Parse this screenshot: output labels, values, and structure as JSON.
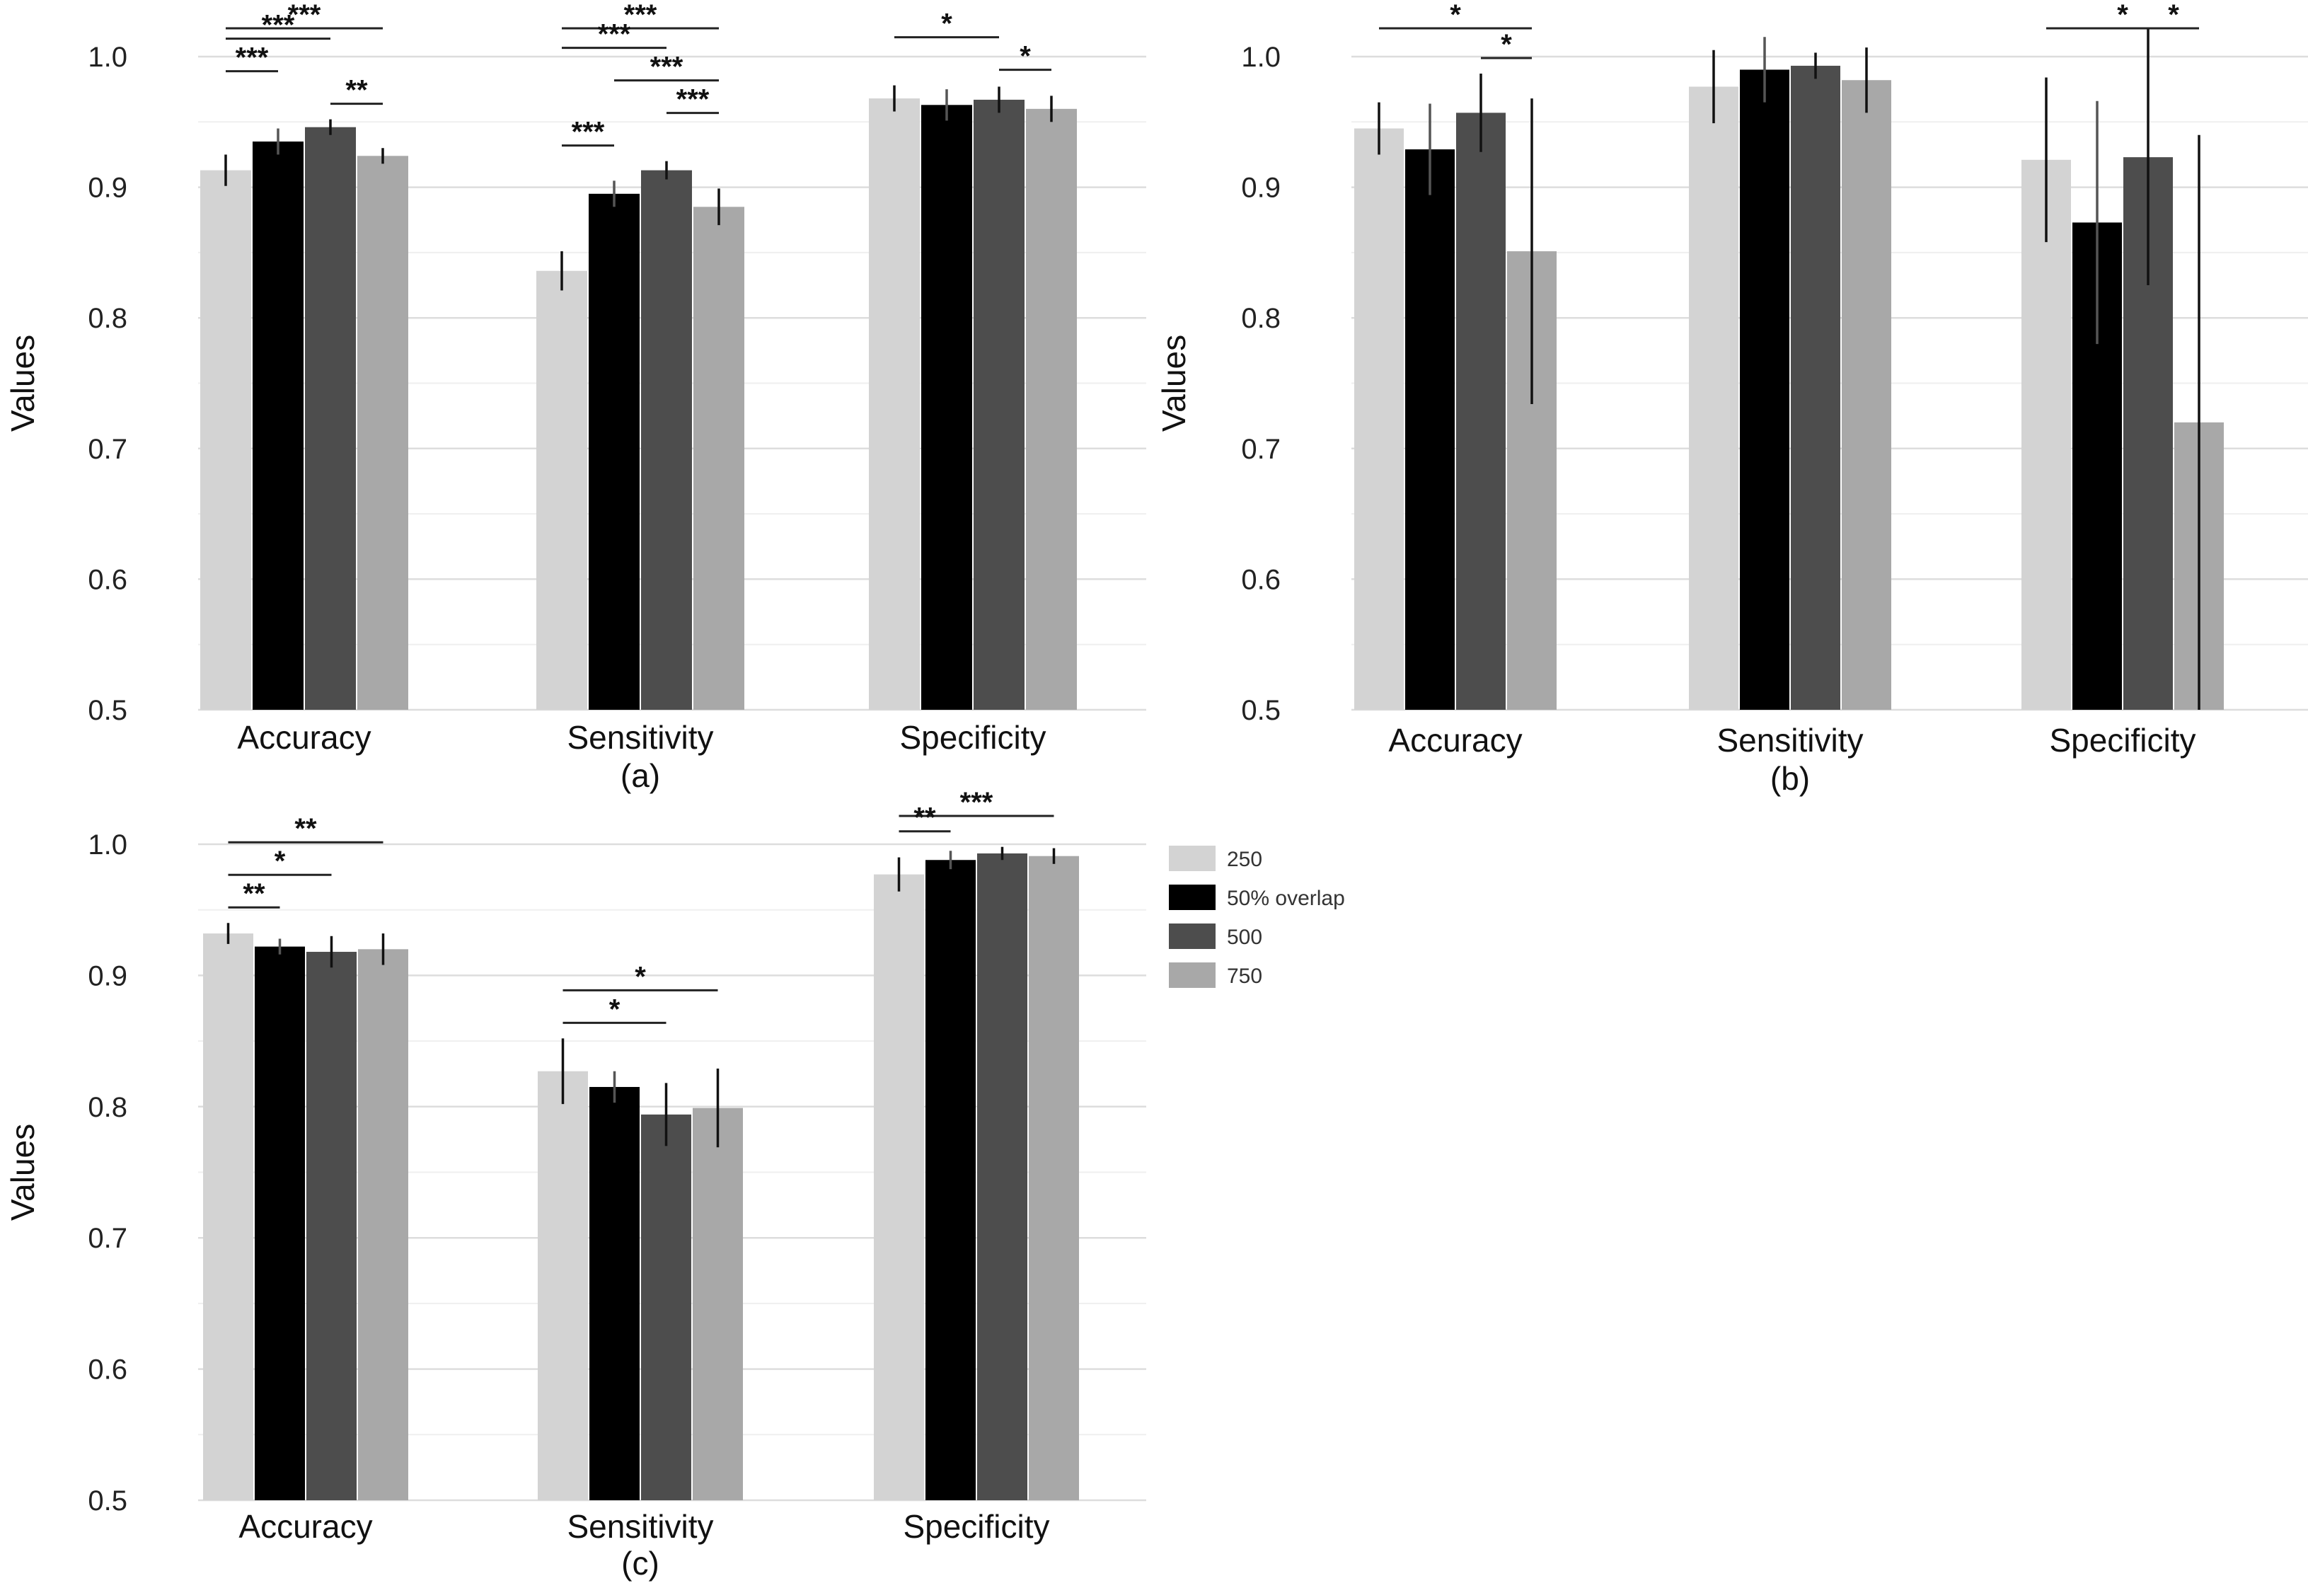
{
  "legend": {
    "entries": [
      {
        "label": "250",
        "color": "#d3d3d3"
      },
      {
        "label": "50% overlap",
        "color": "#000000"
      },
      {
        "label": "500",
        "color": "#4d4d4d"
      },
      {
        "label": "750",
        "color": "#a8a8a8"
      }
    ]
  },
  "chart_data": [
    {
      "panel": "(a)",
      "type": "bar",
      "ylabel": "Values",
      "ylim": [
        0.5,
        1.0
      ],
      "yticks": [
        "0.5",
        "0.6",
        "0.7",
        "0.8",
        "0.9",
        "1.0"
      ],
      "categories": [
        "Accuracy",
        "Sensitivity",
        "Specificity"
      ],
      "series": [
        {
          "name": "250",
          "values": [
            0.913,
            0.836,
            0.968
          ],
          "errors": [
            0.012,
            0.015,
            0.01
          ]
        },
        {
          "name": "50% overlap",
          "values": [
            0.935,
            0.895,
            0.963
          ],
          "errors": [
            0.01,
            0.01,
            0.012
          ]
        },
        {
          "name": "500",
          "values": [
            0.946,
            0.913,
            0.967
          ],
          "errors": [
            0.006,
            0.007,
            0.01
          ]
        },
        {
          "name": "750",
          "values": [
            0.924,
            0.885,
            0.96
          ],
          "errors": [
            0.006,
            0.014,
            0.01
          ]
        }
      ],
      "significance": [
        {
          "category": 0,
          "from": 0,
          "to": 3,
          "label": "***"
        },
        {
          "category": 0,
          "from": 0,
          "to": 2,
          "label": "***"
        },
        {
          "category": 0,
          "from": 0,
          "to": 1,
          "label": "***"
        },
        {
          "category": 0,
          "from": 2,
          "to": 3,
          "label": "**"
        },
        {
          "category": 1,
          "from": 0,
          "to": 3,
          "label": "***"
        },
        {
          "category": 1,
          "from": 0,
          "to": 2,
          "label": "***"
        },
        {
          "category": 1,
          "from": 1,
          "to": 3,
          "label": "***"
        },
        {
          "category": 1,
          "from": 2,
          "to": 3,
          "label": "***"
        },
        {
          "category": 1,
          "from": 0,
          "to": 1,
          "label": "***"
        },
        {
          "category": 2,
          "from": 0,
          "to": 2,
          "label": "*"
        },
        {
          "category": 2,
          "from": 2,
          "to": 3,
          "label": "*"
        }
      ]
    },
    {
      "panel": "(b)",
      "type": "bar",
      "ylabel": "Values",
      "ylim": [
        0.5,
        1.0
      ],
      "yticks": [
        "0.5",
        "0.6",
        "0.7",
        "0.8",
        "0.9",
        "1.0"
      ],
      "categories": [
        "Accuracy",
        "Sensitivity",
        "Specificity"
      ],
      "series": [
        {
          "name": "250",
          "values": [
            0.945,
            0.977,
            0.921
          ],
          "errors": [
            0.02,
            0.028,
            0.063
          ]
        },
        {
          "name": "50% overlap",
          "values": [
            0.929,
            0.99,
            0.873
          ],
          "errors": [
            0.035,
            0.025,
            0.093
          ]
        },
        {
          "name": "500",
          "values": [
            0.957,
            0.993,
            0.923
          ],
          "errors": [
            0.03,
            0.01,
            0.098
          ]
        },
        {
          "name": "750",
          "values": [
            0.851,
            0.982,
            0.72
          ],
          "errors": [
            0.117,
            0.025,
            0.22
          ]
        }
      ],
      "significance": [
        {
          "category": 0,
          "from": 0,
          "to": 3,
          "label": "*"
        },
        {
          "category": 0,
          "from": 2,
          "to": 3,
          "label": "*"
        },
        {
          "category": 2,
          "from": 0,
          "to": 3,
          "label": "*"
        },
        {
          "category": 2,
          "from": 2,
          "to": 3,
          "label": "*"
        }
      ]
    },
    {
      "panel": "(c)",
      "type": "bar",
      "ylabel": "Values",
      "ylim": [
        0.5,
        1.0
      ],
      "yticks": [
        "0.5",
        "0.6",
        "0.7",
        "0.8",
        "0.9",
        "1.0"
      ],
      "categories": [
        "Accuracy",
        "Sensitivity",
        "Specificity"
      ],
      "series": [
        {
          "name": "250",
          "values": [
            0.932,
            0.827,
            0.977
          ],
          "errors": [
            0.008,
            0.025,
            0.013
          ]
        },
        {
          "name": "50% overlap",
          "values": [
            0.922,
            0.815,
            0.988
          ],
          "errors": [
            0.006,
            0.012,
            0.007
          ]
        },
        {
          "name": "500",
          "values": [
            0.918,
            0.794,
            0.993
          ],
          "errors": [
            0.012,
            0.024,
            0.005
          ]
        },
        {
          "name": "750",
          "values": [
            0.92,
            0.799,
            0.991
          ],
          "errors": [
            0.012,
            0.03,
            0.006
          ]
        }
      ],
      "significance": [
        {
          "category": 0,
          "from": 0,
          "to": 3,
          "label": "**"
        },
        {
          "category": 0,
          "from": 0,
          "to": 2,
          "label": "*"
        },
        {
          "category": 0,
          "from": 0,
          "to": 1,
          "label": "**"
        },
        {
          "category": 1,
          "from": 0,
          "to": 3,
          "label": "*"
        },
        {
          "category": 1,
          "from": 0,
          "to": 2,
          "label": "*"
        },
        {
          "category": 2,
          "from": 0,
          "to": 3,
          "label": "***"
        },
        {
          "category": 2,
          "from": 0,
          "to": 1,
          "label": "**"
        }
      ]
    }
  ]
}
